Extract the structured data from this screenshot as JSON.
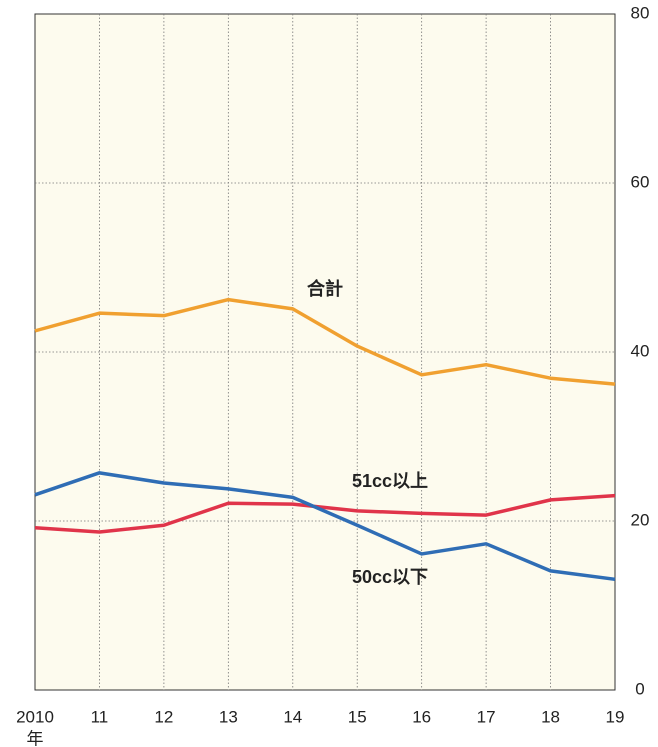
{
  "chart_data": {
    "type": "line",
    "x_label": "年",
    "categories": [
      "2010",
      "11",
      "12",
      "13",
      "14",
      "15",
      "16",
      "17",
      "18",
      "19"
    ],
    "series": [
      {
        "name": "合計",
        "color": "#f0a030",
        "values": [
          42.5,
          44.6,
          44.3,
          46.2,
          45.1,
          40.7,
          37.3,
          38.5,
          36.9,
          36.2
        ]
      },
      {
        "name": "51cc以上",
        "color": "#e0344a",
        "values": [
          19.2,
          18.7,
          19.5,
          22.1,
          22.0,
          21.2,
          20.9,
          20.7,
          22.5,
          23.0
        ]
      },
      {
        "name": "50cc以下",
        "color": "#2f6db5",
        "values": [
          23.1,
          25.7,
          24.5,
          23.8,
          22.8,
          19.5,
          16.1,
          17.3,
          14.1,
          13.1
        ]
      }
    ],
    "ylim": [
      0,
      80
    ],
    "yticks": [
      0,
      20,
      40,
      60,
      80
    ],
    "y_axis_side": "right",
    "grid": true
  }
}
